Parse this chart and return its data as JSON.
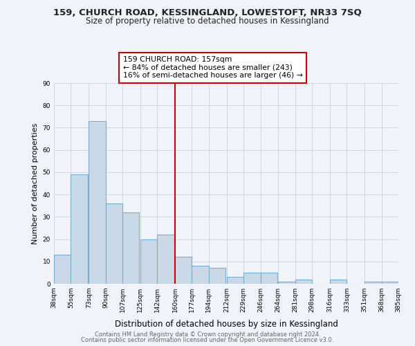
{
  "title1": "159, CHURCH ROAD, KESSINGLAND, LOWESTOFT, NR33 7SQ",
  "title2": "Size of property relative to detached houses in Kessingland",
  "xlabel": "Distribution of detached houses by size in Kessingland",
  "ylabel": "Number of detached properties",
  "bar_left_edges": [
    38,
    55,
    73,
    90,
    107,
    125,
    142,
    160,
    177,
    194,
    212,
    229,
    246,
    264,
    281,
    298,
    316,
    333,
    351,
    368
  ],
  "bar_heights": [
    13,
    49,
    73,
    36,
    32,
    20,
    22,
    12,
    8,
    7,
    3,
    5,
    5,
    1,
    2,
    0,
    2,
    0,
    1,
    1
  ],
  "bin_width": 17,
  "bar_face_color": "#c9d9e8",
  "bar_edge_color": "#7aadd4",
  "vline_x": 160,
  "vline_color": "#cc0000",
  "annotation_line1": "159 CHURCH ROAD: 157sqm",
  "annotation_line2": "← 84% of detached houses are smaller (243)",
  "annotation_line3": "16% of semi-detached houses are larger (46) →",
  "annotation_box_edge_color": "#cc0000",
  "annotation_box_face_color": "#ffffff",
  "grid_color": "#d0d8e8",
  "background_color": "#f0f4fa",
  "tick_labels": [
    "38sqm",
    "55sqm",
    "73sqm",
    "90sqm",
    "107sqm",
    "125sqm",
    "142sqm",
    "160sqm",
    "177sqm",
    "194sqm",
    "212sqm",
    "229sqm",
    "246sqm",
    "264sqm",
    "281sqm",
    "298sqm",
    "316sqm",
    "333sqm",
    "351sqm",
    "368sqm",
    "385sqm"
  ],
  "ylim": [
    0,
    90
  ],
  "yticks": [
    0,
    10,
    20,
    30,
    40,
    50,
    60,
    70,
    80,
    90
  ],
  "footer1": "Contains HM Land Registry data © Crown copyright and database right 2024.",
  "footer2": "Contains public sector information licensed under the Open Government Licence v3.0."
}
